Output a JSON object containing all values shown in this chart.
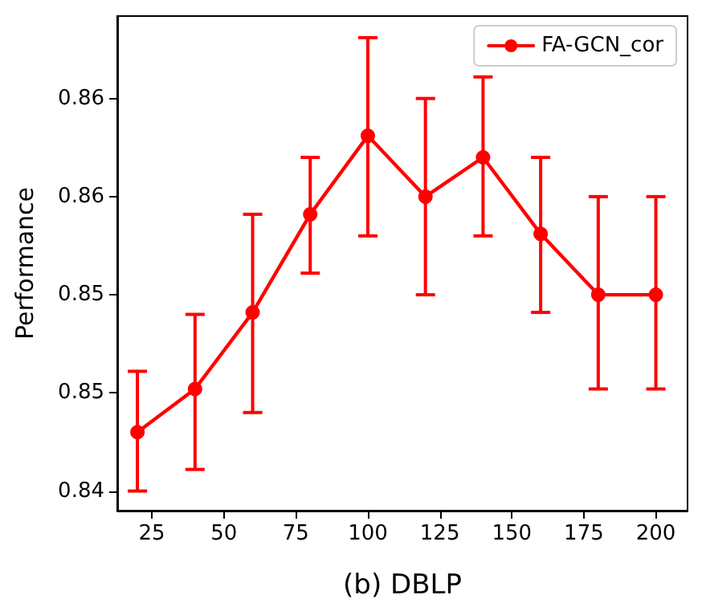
{
  "chart_data": {
    "type": "line",
    "xlabel": "(b) DBLP",
    "ylabel": "Performance",
    "x": [
      20,
      40,
      60,
      80,
      100,
      120,
      140,
      160,
      180,
      200
    ],
    "series": [
      {
        "name": "FA-GCN_cor",
        "color": "#ff0000",
        "values": [
          0.843,
          0.8452,
          0.8491,
          0.8541,
          0.8581,
          0.855,
          0.857,
          0.8531,
          0.85,
          0.85
        ],
        "errors": [
          [
            0.84,
            0.8461
          ],
          [
            0.8411,
            0.849
          ],
          [
            0.844,
            0.8541
          ],
          [
            0.8511,
            0.857
          ],
          [
            0.853,
            0.8631
          ],
          [
            0.85,
            0.86
          ],
          [
            0.853,
            0.8611
          ],
          [
            0.8491,
            0.857
          ],
          [
            0.8452,
            0.855
          ],
          [
            0.8452,
            0.855
          ]
        ]
      }
    ],
    "xlim": [
      13,
      211
    ],
    "xticks": [
      25,
      50,
      75,
      100,
      125,
      150,
      175,
      200
    ],
    "ylim": [
      0.839,
      0.8642
    ],
    "yticks": [
      {
        "value": 0.84,
        "label": "0.84"
      },
      {
        "value": 0.845,
        "label": "0.85"
      },
      {
        "value": 0.85,
        "label": "0.85"
      },
      {
        "value": 0.855,
        "label": "0.86"
      },
      {
        "value": 0.86,
        "label": "0.86"
      }
    ],
    "grid": false,
    "legend": "top right",
    "marker": "circle",
    "line_style": "solid"
  }
}
